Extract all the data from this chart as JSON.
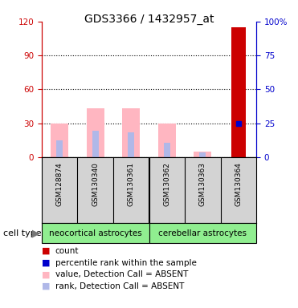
{
  "title": "GDS3366 / 1432957_at",
  "samples": [
    "GSM128874",
    "GSM130340",
    "GSM130361",
    "GSM130362",
    "GSM130363",
    "GSM130364"
  ],
  "cell_type_groups": [
    {
      "label": "neocortical astrocytes",
      "n_samples": 3
    },
    {
      "label": "cerebellar astrocytes",
      "n_samples": 3
    }
  ],
  "value_absent": [
    30,
    43,
    43,
    30,
    5,
    0
  ],
  "rank_absent": [
    15,
    23,
    22,
    13,
    4,
    0
  ],
  "count_values": [
    0,
    0,
    0,
    0,
    0,
    115
  ],
  "percentile_rank": [
    0,
    0,
    0,
    0,
    0,
    30
  ],
  "ylim_left": [
    0,
    120
  ],
  "ylim_right": [
    0,
    100
  ],
  "yticks_left": [
    0,
    30,
    60,
    90,
    120
  ],
  "yticks_right": [
    0,
    25,
    50,
    75,
    100
  ],
  "ytick_labels_left": [
    "0",
    "30",
    "60",
    "90",
    "120"
  ],
  "ytick_labels_right": [
    "0",
    "25",
    "50",
    "75",
    "100%"
  ],
  "left_axis_color": "#cc0000",
  "right_axis_color": "#0000cc",
  "bar_value_color": "#FFB6C1",
  "bar_rank_color": "#b0b8e8",
  "bar_count_color": "#cc0000",
  "bar_percentile_color": "#0000cc",
  "sample_box_color": "#d3d3d3",
  "group_box_color": "#90ee90",
  "cell_type_label": "cell type",
  "legend_items": [
    {
      "label": "count",
      "color": "#cc0000"
    },
    {
      "label": "percentile rank within the sample",
      "color": "#0000cc"
    },
    {
      "label": "value, Detection Call = ABSENT",
      "color": "#FFB6C1"
    },
    {
      "label": "rank, Detection Call = ABSENT",
      "color": "#b0b8e8"
    }
  ],
  "figsize": [
    3.71,
    3.84
  ],
  "dpi": 100
}
